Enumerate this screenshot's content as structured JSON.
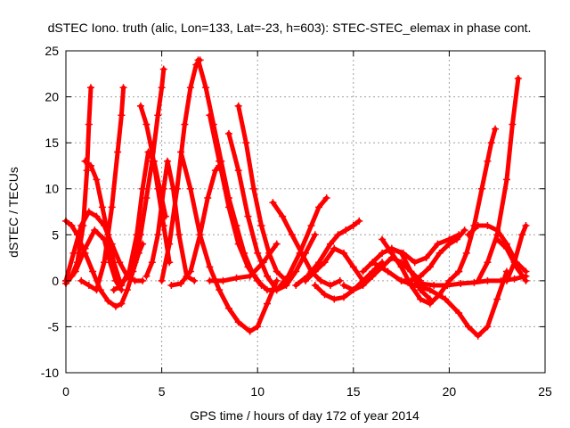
{
  "chart_data": {
    "type": "line",
    "title": "dSTEC Iono. truth (alic, Lon=133, Lat=-23, h=603): STEC-STEC_elemax in phase cont.",
    "xlabel": "GPS time / hours of day 172 of year 2014",
    "ylabel": "dSTEC  / TECUs",
    "xlim": [
      0,
      25
    ],
    "ylim": [
      -10,
      25
    ],
    "xticks": [
      0,
      5,
      10,
      15,
      20,
      25
    ],
    "yticks": [
      -10,
      -5,
      0,
      5,
      10,
      15,
      20,
      25
    ],
    "grid": true,
    "legend": "none",
    "color": "#ff0000",
    "marker": "plus",
    "series": [
      {
        "x": [
          0.0,
          0.3,
          0.6,
          1.0,
          1.4,
          1.8,
          2.2,
          2.6,
          2.9,
          3.2,
          3.5,
          3.8,
          4.0
        ],
        "values": [
          6.5,
          6.0,
          5.0,
          3.0,
          1.0,
          -1.0,
          -2.2,
          -2.8,
          -2.5,
          -1.0,
          1.0,
          3.0,
          4.0
        ]
      },
      {
        "x": [
          0.0,
          0.3,
          0.6,
          0.9,
          1.1,
          1.2,
          1.3
        ],
        "values": [
          0.0,
          0.5,
          2.0,
          6.0,
          12.0,
          17.0,
          21.0
        ]
      },
      {
        "x": [
          1.0,
          1.3,
          1.6,
          1.9,
          2.2,
          2.5,
          2.8
        ],
        "values": [
          13.0,
          12.5,
          11.0,
          8.0,
          5.0,
          2.0,
          0.0
        ]
      },
      {
        "x": [
          0.8,
          1.2,
          1.6,
          2.0,
          2.4,
          2.7,
          2.9,
          3.0
        ],
        "values": [
          0.0,
          -0.5,
          -1.0,
          2.0,
          8.0,
          14.0,
          18.0,
          21.0
        ]
      },
      {
        "x": [
          0.0,
          0.5,
          1.0,
          1.5,
          2.0,
          2.3,
          2.6,
          2.9
        ],
        "values": [
          -0.3,
          1.0,
          3.5,
          5.5,
          4.5,
          2.0,
          0.0,
          -1.0
        ]
      },
      {
        "x": [
          0.0,
          0.4,
          0.8,
          1.2,
          1.6,
          2.0,
          2.4,
          2.8,
          3.2,
          3.6,
          4.0
        ],
        "values": [
          0.0,
          3.0,
          6.0,
          7.5,
          7.0,
          6.0,
          4.0,
          2.0,
          0.5,
          0.0,
          0.0
        ]
      },
      {
        "x": [
          2.5,
          2.9,
          3.3,
          3.7,
          4.0,
          4.3,
          4.6,
          4.9,
          5.2
        ],
        "values": [
          -1.0,
          -0.5,
          1.0,
          5.0,
          10.0,
          14.0,
          13.0,
          10.0,
          7.0
        ]
      },
      {
        "x": [
          3.0,
          3.3,
          3.6,
          3.9,
          4.2,
          4.5,
          4.8,
          5.0,
          5.1
        ],
        "values": [
          0.0,
          0.5,
          2.0,
          5.0,
          9.0,
          13.0,
          18.0,
          21.0,
          23.0
        ]
      },
      {
        "x": [
          3.9,
          4.2,
          4.5,
          4.8,
          5.1,
          5.4
        ],
        "values": [
          19.0,
          17.0,
          14.0,
          10.0,
          6.0,
          2.0
        ]
      },
      {
        "x": [
          4.2,
          4.5,
          4.8,
          5.1,
          5.3,
          5.6,
          5.9,
          6.3,
          6.7
        ],
        "values": [
          0.5,
          2.0,
          5.0,
          10.0,
          13.0,
          10.0,
          5.0,
          0.5,
          0.0
        ]
      },
      {
        "x": [
          5.0,
          5.4,
          5.8,
          6.2,
          6.5,
          6.8,
          7.0
        ],
        "values": [
          0.0,
          4.0,
          10.0,
          17.0,
          21.0,
          23.5,
          24.0
        ]
      },
      {
        "x": [
          5.5,
          6.0,
          6.5,
          7.0,
          7.4,
          7.8,
          8.0
        ],
        "values": [
          -0.5,
          -0.3,
          1.0,
          5.0,
          9.0,
          12.0,
          12.5
        ]
      },
      {
        "x": [
          6.9,
          7.3,
          7.7,
          8.1,
          8.5,
          8.9,
          9.3,
          9.7,
          10.2
        ],
        "values": [
          24.0,
          21.0,
          17.0,
          13.0,
          9.0,
          6.0,
          3.0,
          1.0,
          -0.5
        ]
      },
      {
        "x": [
          6.0,
          6.5,
          7.0,
          7.5,
          8.0,
          8.5,
          9.0,
          9.6,
          10.0,
          10.5,
          11.0
        ],
        "values": [
          14.0,
          10.0,
          5.0,
          1.5,
          -1.0,
          -3.0,
          -4.5,
          -5.5,
          -5.0,
          -2.5,
          0.0
        ]
      },
      {
        "x": [
          7.5,
          8.0,
          8.5,
          9.0,
          9.5,
          10.0,
          10.5,
          11.0,
          11.5
        ],
        "values": [
          18.0,
          13.0,
          8.0,
          4.0,
          1.5,
          0.0,
          -1.0,
          -1.0,
          0.0
        ]
      },
      {
        "x": [
          8.5,
          9.0,
          9.5,
          10.0,
          10.5,
          11.0,
          11.5,
          12.0,
          12.5,
          13.0
        ],
        "values": [
          16.0,
          12.0,
          7.0,
          3.0,
          0.5,
          -1.0,
          -0.5,
          1.0,
          3.0,
          5.0
        ]
      },
      {
        "x": [
          9.0,
          9.4,
          9.8,
          10.2,
          10.6,
          11.0,
          11.5
        ],
        "values": [
          19.0,
          15.0,
          10.0,
          6.0,
          3.0,
          1.0,
          0.0
        ]
      },
      {
        "x": [
          7.5,
          8.2,
          8.9,
          9.6,
          10.3,
          11.0
        ],
        "values": [
          0.0,
          0.0,
          0.3,
          0.5,
          2.0,
          4.0
        ]
      },
      {
        "x": [
          10.8,
          11.3,
          11.8,
          12.3,
          12.8,
          13.3,
          13.8,
          14.3
        ],
        "values": [
          8.5,
          7.0,
          5.0,
          3.0,
          1.0,
          0.0,
          -0.5,
          0.0
        ]
      },
      {
        "x": [
          11.0,
          11.6,
          12.2,
          12.8,
          13.2,
          13.6
        ],
        "values": [
          -1.0,
          0.5,
          3.0,
          6.0,
          8.0,
          9.0
        ]
      },
      {
        "x": [
          12.0,
          12.6,
          13.2,
          13.8,
          14.2,
          14.6,
          15.0,
          15.3
        ],
        "values": [
          -0.5,
          0.5,
          2.0,
          4.0,
          5.0,
          5.5,
          6.0,
          6.5
        ]
      },
      {
        "x": [
          12.5,
          13.0,
          13.5,
          14.0,
          14.5,
          15.0,
          15.5
        ],
        "values": [
          0.0,
          1.0,
          2.0,
          3.5,
          3.0,
          1.5,
          0.0
        ]
      },
      {
        "x": [
          13.0,
          13.5,
          14.0,
          14.5,
          15.0,
          15.5,
          16.0,
          16.5
        ],
        "values": [
          -0.5,
          -1.5,
          -2.0,
          -1.8,
          -1.0,
          0.0,
          1.0,
          2.0
        ]
      },
      {
        "x": [
          14.5,
          15.0,
          15.5,
          16.0,
          16.5,
          17.0,
          17.5,
          18.0,
          18.5
        ],
        "values": [
          -0.5,
          -1.0,
          -0.5,
          0.5,
          1.5,
          2.5,
          2.0,
          1.0,
          0.0
        ]
      },
      {
        "x": [
          15.5,
          16.0,
          16.5,
          17.0,
          17.5,
          18.0,
          18.5,
          19.0
        ],
        "values": [
          1.0,
          2.0,
          3.0,
          3.5,
          3.0,
          1.0,
          -1.0,
          -2.0
        ]
      },
      {
        "x": [
          16.5,
          17.0,
          17.5,
          18.0,
          18.5,
          19.0,
          19.5,
          20.0,
          20.5
        ],
        "values": [
          4.5,
          3.0,
          1.5,
          -0.5,
          -2.0,
          -2.5,
          -1.5,
          0.0,
          1.0
        ]
      },
      {
        "x": [
          17.0,
          17.6,
          18.2,
          18.8,
          19.4,
          20.0,
          20.5
        ],
        "values": [
          3.5,
          3.0,
          2.0,
          2.5,
          4.0,
          4.5,
          5.0
        ]
      },
      {
        "x": [
          17.5,
          18.0,
          18.5,
          19.0,
          19.5,
          20.0,
          20.4,
          20.8
        ],
        "values": [
          0.0,
          0.0,
          0.5,
          1.5,
          3.0,
          4.0,
          4.5,
          5.5
        ]
      },
      {
        "x": [
          16.0,
          16.8,
          17.5,
          18.2,
          19.0,
          19.8,
          20.5,
          21.0,
          21.5,
          22.0,
          22.5,
          23.0
        ],
        "values": [
          2.0,
          1.0,
          0.0,
          -0.5,
          -1.0,
          -2.0,
          -3.5,
          -5.0,
          -6.0,
          -5.0,
          -2.0,
          1.0
        ]
      },
      {
        "x": [
          18.5,
          19.2,
          19.9,
          20.6,
          21.3,
          22.0,
          22.7,
          23.4,
          24.0
        ],
        "values": [
          -0.3,
          -0.5,
          -0.5,
          -0.3,
          -0.2,
          0.0,
          0.0,
          0.2,
          0.5
        ]
      },
      {
        "x": [
          20.5,
          20.9,
          21.3,
          21.7,
          22.0,
          22.2,
          22.4
        ],
        "values": [
          1.0,
          3.0,
          6.0,
          10.0,
          13.0,
          15.0,
          16.5
        ]
      },
      {
        "x": [
          21.0,
          21.5,
          22.0,
          22.5,
          23.0,
          23.5,
          24.0
        ],
        "values": [
          5.0,
          6.0,
          6.0,
          5.5,
          4.0,
          2.0,
          1.0
        ]
      },
      {
        "x": [
          21.5,
          22.0,
          22.5,
          23.0,
          23.3,
          23.6
        ],
        "values": [
          0.0,
          2.0,
          5.0,
          11.0,
          17.0,
          22.0
        ]
      },
      {
        "x": [
          22.5,
          23.0,
          23.5,
          24.0
        ],
        "values": [
          4.5,
          3.5,
          1.5,
          0.0
        ]
      },
      {
        "x": [
          23.0,
          23.4,
          23.8,
          24.0
        ],
        "values": [
          0.0,
          2.0,
          5.0,
          6.0
        ]
      }
    ]
  }
}
